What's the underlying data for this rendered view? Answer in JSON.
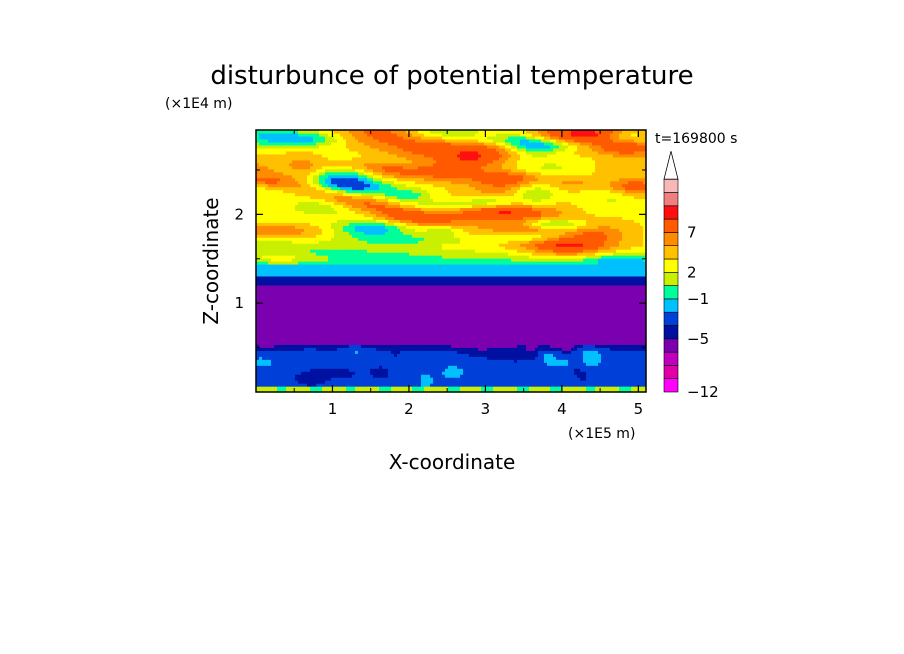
{
  "chart_data": {
    "type": "heatmap",
    "title": "disturbunce of potential temperature",
    "time_label": "t=169800 s",
    "xlabel": "X-coordinate",
    "ylabel": "Z-coordinate",
    "x_scale_label": "(×1E5 m)",
    "y_scale_label": "(×1E4 m)",
    "xlim": [
      0,
      5.1
    ],
    "ylim": [
      0,
      2.95
    ],
    "x_ticks": [
      1,
      2,
      3,
      4,
      5
    ],
    "x_tick_labels": [
      "1",
      "2",
      "3",
      "4",
      "5"
    ],
    "y_ticks": [
      1,
      2
    ],
    "y_tick_labels": [
      "1",
      "2"
    ],
    "colorbar": {
      "colors": [
        "#ff00ff",
        "#e000a8",
        "#c000c0",
        "#7a00b0",
        "#0010a0",
        "#0040d8",
        "#00c0ff",
        "#00ff9a",
        "#c8f000",
        "#ffff00",
        "#ffc000",
        "#ff8c00",
        "#ff5a00",
        "#ff1010",
        "#f08080",
        "#f8b8b8"
      ],
      "tick_labels": [
        "7",
        "2",
        "−1",
        "−5",
        "−12"
      ],
      "tick_levels": [
        12,
        9,
        7,
        4,
        0
      ],
      "extend": "max"
    },
    "bands": [
      {
        "zmin": 0.0,
        "zmax": 0.07,
        "value": "+1"
      },
      {
        "zmin": 0.07,
        "zmax": 0.2,
        "value": "-1"
      },
      {
        "zmin": 0.2,
        "zmax": 0.55,
        "value": "-2"
      },
      {
        "zmin": 0.55,
        "zmax": 1.2,
        "value": "-5"
      },
      {
        "zmin": 1.2,
        "zmax": 1.32,
        "value": "-4"
      },
      {
        "zmin": 1.32,
        "zmax": 1.45,
        "value": "-1"
      },
      {
        "zmin": 1.45,
        "zmax": 2.95,
        "value": "+2"
      }
    ]
  }
}
